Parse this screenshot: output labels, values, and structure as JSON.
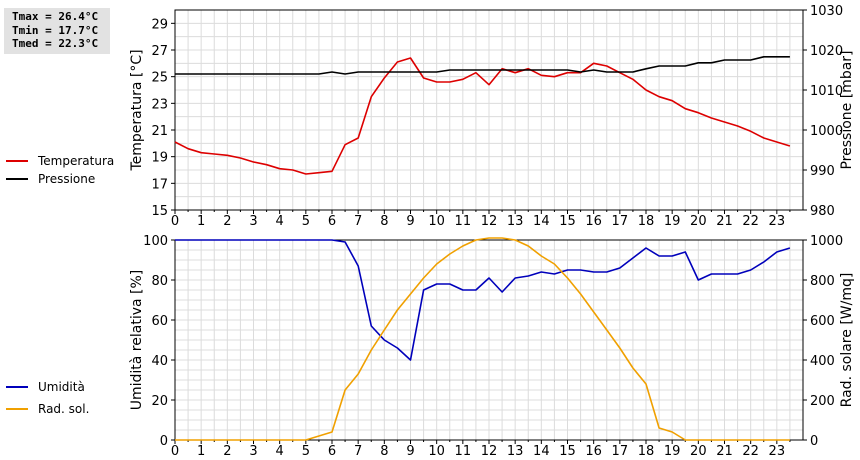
{
  "stats": {
    "tmax": "Tmax = 26.4°C",
    "tmin": "Tmin = 17.7°C",
    "tmed": "Tmed = 22.3°C"
  },
  "legend_top": [
    {
      "label": "Temperatura",
      "color": "#dd0000"
    },
    {
      "label": "Pressione",
      "color": "#000000"
    }
  ],
  "legend_bottom": [
    {
      "label": "Umidità",
      "color": "#0000bb"
    },
    {
      "label": "Rad. sol.",
      "color": "#f0a000"
    }
  ],
  "chart_data": [
    {
      "type": "line",
      "xlim": [
        0,
        24
      ],
      "x_ticks": [
        "0",
        "1",
        "2",
        "3",
        "4",
        "5",
        "6",
        "7",
        "8",
        "9",
        "10",
        "11",
        "12",
        "13",
        "14",
        "15",
        "16",
        "17",
        "18",
        "19",
        "20",
        "21",
        "22",
        "23"
      ],
      "ylabel": "Temperatura [°C]",
      "ylim": [
        15,
        30
      ],
      "y_ticks": [
        "15",
        "17",
        "19",
        "21",
        "23",
        "25",
        "27",
        "29"
      ],
      "y2label": "Pressione [mbar]",
      "y2lim": [
        980,
        1030
      ],
      "y2_ticks": [
        "980",
        "990",
        "1000",
        "1010",
        "1020",
        "1030"
      ],
      "grid": true,
      "series": [
        {
          "name": "Temperatura",
          "axis": "left",
          "color": "#dd0000",
          "x": [
            0,
            0.5,
            1,
            1.5,
            2,
            2.5,
            3,
            3.5,
            4,
            4.5,
            5,
            5.5,
            6,
            6.5,
            7,
            7.5,
            8,
            8.5,
            9,
            9.5,
            10,
            10.5,
            11,
            11.5,
            12,
            12.5,
            13,
            13.5,
            14,
            14.5,
            15,
            15.5,
            16,
            16.5,
            17,
            17.5,
            18,
            18.5,
            19,
            19.5,
            20,
            20.5,
            21,
            21.5,
            22,
            22.5,
            23,
            23.5
          ],
          "values": [
            20.1,
            19.6,
            19.3,
            19.2,
            19.1,
            18.9,
            18.6,
            18.4,
            18.1,
            18.0,
            17.7,
            17.8,
            17.9,
            19.9,
            20.4,
            23.5,
            24.9,
            26.1,
            26.4,
            24.9,
            24.6,
            24.6,
            24.8,
            25.3,
            24.4,
            25.6,
            25.3,
            25.6,
            25.1,
            25.0,
            25.3,
            25.3,
            26.0,
            25.8,
            25.3,
            24.8,
            24.0,
            23.5,
            23.2,
            22.6,
            22.3,
            21.9,
            21.6,
            21.3,
            20.9,
            20.4,
            20.1,
            19.8
          ]
        },
        {
          "name": "Pressione",
          "axis": "right",
          "color": "#000000",
          "x": [
            0,
            0.5,
            1,
            1.5,
            2,
            2.5,
            3,
            3.5,
            4,
            4.5,
            5,
            5.5,
            6,
            6.5,
            7,
            7.5,
            8,
            8.5,
            9,
            9.5,
            10,
            10.5,
            11,
            11.5,
            12,
            12.5,
            13,
            13.5,
            14,
            14.5,
            15,
            15.5,
            16,
            16.5,
            17,
            17.5,
            18,
            18.5,
            19,
            19.5,
            20,
            20.5,
            21,
            21.5,
            22,
            22.5,
            23,
            23.5
          ],
          "values": [
            1014,
            1014,
            1014,
            1014,
            1014,
            1014,
            1014,
            1014,
            1014,
            1014,
            1014,
            1014,
            1014.5,
            1014,
            1014.5,
            1014.5,
            1014.5,
            1014.5,
            1014.5,
            1014.5,
            1014.5,
            1015,
            1015,
            1015,
            1015,
            1015,
            1015,
            1015,
            1015,
            1015,
            1015,
            1014.5,
            1015,
            1014.5,
            1014.5,
            1014.5,
            1015.3,
            1016,
            1016,
            1016,
            1016.8,
            1016.8,
            1017.5,
            1017.5,
            1017.5,
            1018.3,
            1018.3,
            1018.3
          ]
        }
      ]
    },
    {
      "type": "line",
      "xlim": [
        0,
        24
      ],
      "x_ticks": [
        "0",
        "1",
        "2",
        "3",
        "4",
        "5",
        "6",
        "7",
        "8",
        "9",
        "10",
        "11",
        "12",
        "13",
        "14",
        "15",
        "16",
        "17",
        "18",
        "19",
        "20",
        "21",
        "22",
        "23"
      ],
      "ylabel": "Umidità relativa [%]",
      "ylim": [
        0,
        100
      ],
      "y_ticks": [
        "0",
        "20",
        "40",
        "60",
        "80",
        "100"
      ],
      "y2label": "Rad. solare [W/mq]",
      "y2lim": [
        0,
        1000
      ],
      "y2_ticks": [
        "0",
        "200",
        "400",
        "600",
        "800",
        "1000"
      ],
      "grid": true,
      "series": [
        {
          "name": "Umidità",
          "axis": "left",
          "color": "#0000bb",
          "x": [
            0,
            0.5,
            1,
            1.5,
            2,
            2.5,
            3,
            3.5,
            4,
            4.5,
            5,
            5.5,
            6,
            6.5,
            7,
            7.5,
            8,
            8.5,
            9,
            9.5,
            10,
            10.5,
            11,
            11.5,
            12,
            12.5,
            13,
            13.5,
            14,
            14.5,
            15,
            15.5,
            16,
            16.5,
            17,
            17.5,
            18,
            18.5,
            19,
            19.5,
            20,
            20.5,
            21,
            21.5,
            22,
            22.5,
            23,
            23.5
          ],
          "values": [
            100,
            100,
            100,
            100,
            100,
            100,
            100,
            100,
            100,
            100,
            100,
            100,
            100,
            99,
            87,
            57,
            50,
            46,
            40,
            75,
            78,
            78,
            75,
            75,
            81,
            74,
            81,
            82,
            84,
            83,
            85,
            85,
            84,
            84,
            86,
            91,
            96,
            92,
            92,
            94,
            80,
            83,
            83,
            83,
            85,
            89,
            94,
            96
          ]
        },
        {
          "name": "Rad. sol.",
          "axis": "right",
          "color": "#f0a000",
          "x": [
            0,
            0.5,
            1,
            1.5,
            2,
            2.5,
            3,
            3.5,
            4,
            4.5,
            5,
            5.5,
            6,
            6.5,
            7,
            7.5,
            8,
            8.5,
            9,
            9.5,
            10,
            10.5,
            11,
            11.5,
            12,
            12.5,
            13,
            13.5,
            14,
            14.5,
            15,
            15.5,
            16,
            16.5,
            17,
            17.5,
            18,
            18.5,
            19,
            19.5,
            20,
            20.5,
            21,
            21.5,
            22,
            22.5,
            23,
            23.5
          ],
          "values": [
            0,
            0,
            0,
            0,
            0,
            0,
            0,
            0,
            0,
            0,
            0,
            20,
            40,
            250,
            330,
            450,
            550,
            650,
            730,
            810,
            880,
            930,
            970,
            1000,
            1010,
            1010,
            1000,
            970,
            920,
            880,
            810,
            730,
            640,
            550,
            460,
            360,
            280,
            60,
            40,
            0,
            0,
            0,
            0,
            0,
            0,
            0,
            0,
            0
          ]
        }
      ]
    }
  ]
}
